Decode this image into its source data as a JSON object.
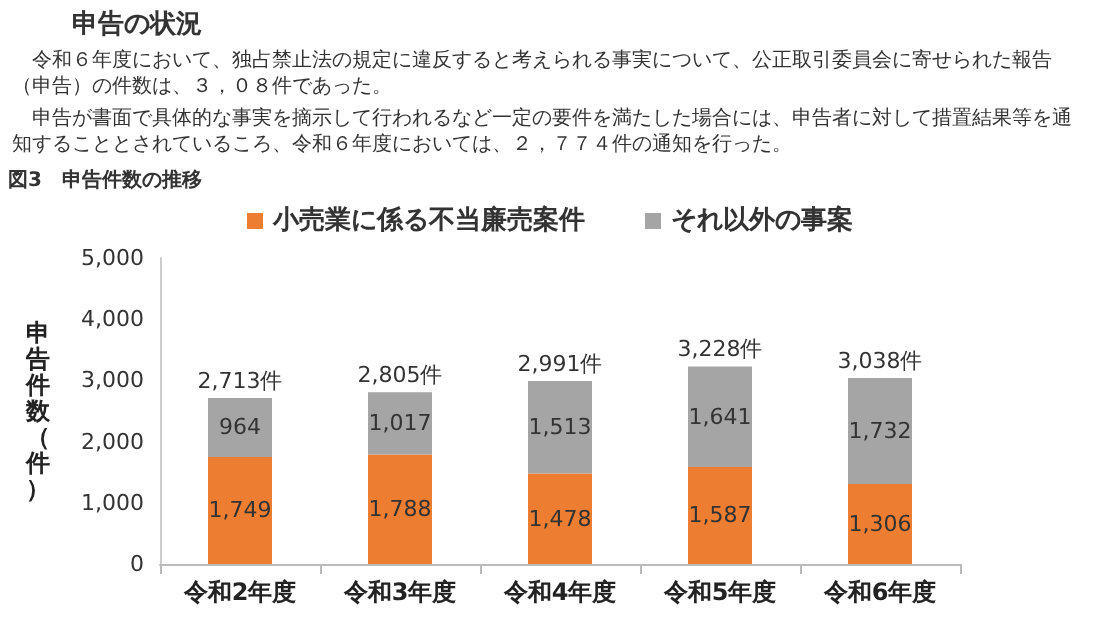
{
  "chart_data": {
    "type": "bar",
    "title": "申告の状況",
    "annotations": [
      "令和６年度において、独占禁止法の規定に違反すると考えられる事実について、公正取引委員会に寄せられた報告（申告）の件数は、３，０８件であった。",
      "申告が書面で具体的な事実を摘示して行われるなど一定の要件を満たした場合には、申告者に対して措置結果等を通知することとされているころ、令和６年度においては、２，７７４件の通知を行った。"
    ],
    "subtitle": "図3　申告件数の推移",
    "ylabel": "申告件数（件）",
    "categories": [
      "令和2年度",
      "令和3年度",
      "令和4年度",
      "令和5年度",
      "令和6年度"
    ],
    "series": [
      {
        "name": "小売業に係る不当廉売案件",
        "color": "#ed7d31",
        "values": [
          1749,
          1788,
          1478,
          1587,
          1306
        ],
        "value_labels": [
          "1,749",
          "1,788",
          "1,478",
          "1,587",
          "1,306"
        ]
      },
      {
        "name": "それ以外の事案",
        "color": "#a5a5a5",
        "values": [
          964,
          1017,
          1513,
          1641,
          1732
        ],
        "value_labels": [
          "964",
          "1,017",
          "1,513",
          "1,641",
          "1,732"
        ]
      }
    ],
    "stacked": true,
    "totals": [
      "2,713件",
      "2,805件",
      "2,991件",
      "3,228件",
      "3,038件"
    ],
    "ylim": [
      0,
      5000
    ],
    "yticks": [
      0,
      {
        "value": 1000,
        "label": "1,000"
      },
      {
        "value": 2000,
        "label": "2,000"
      },
      {
        "value": 3000,
        "label": "3,000"
      },
      {
        "value": 4000,
        "label": "4,000"
      },
      {
        "value": 5000,
        "label": "5,000"
      }
    ],
    "grid": false,
    "legend": "top"
  }
}
